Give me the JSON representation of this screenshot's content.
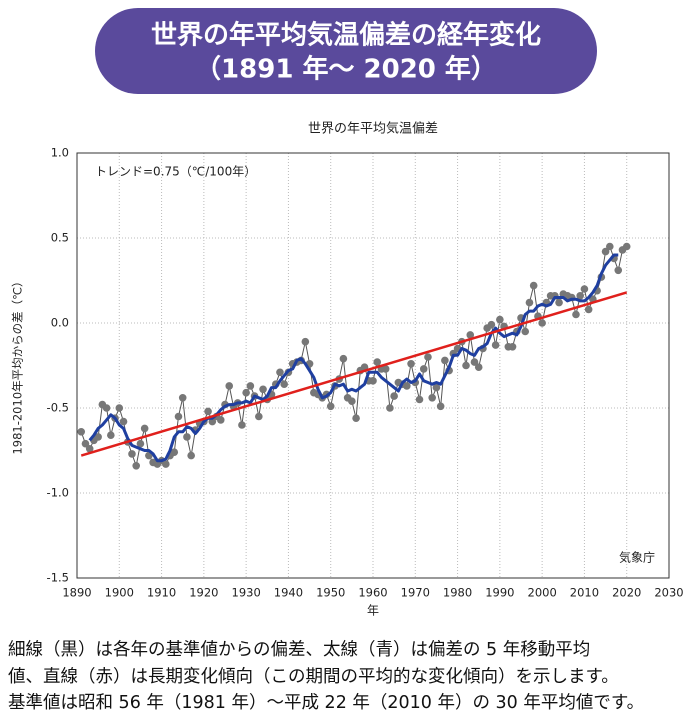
{
  "header": {
    "title_line1": "世界の年平均気温偏差の経年変化",
    "title_line2": "（1891 年～ 2020 年）"
  },
  "chart_data": {
    "type": "line",
    "title": "世界の年平均気温偏差",
    "annotation": "トレンド=0.75（℃/100年）",
    "credit": "気象庁",
    "x_label": "年",
    "y_label": "1981-2010年平均からの差（℃）",
    "x": [
      1891,
      1892,
      1893,
      1894,
      1895,
      1896,
      1897,
      1898,
      1899,
      1900,
      1901,
      1902,
      1903,
      1904,
      1905,
      1906,
      1907,
      1908,
      1909,
      1910,
      1911,
      1912,
      1913,
      1914,
      1915,
      1916,
      1917,
      1918,
      1919,
      1920,
      1921,
      1922,
      1923,
      1924,
      1925,
      1926,
      1927,
      1928,
      1929,
      1930,
      1931,
      1932,
      1933,
      1934,
      1935,
      1936,
      1937,
      1938,
      1939,
      1940,
      1941,
      1942,
      1943,
      1944,
      1945,
      1946,
      1947,
      1948,
      1949,
      1950,
      1951,
      1952,
      1953,
      1954,
      1955,
      1956,
      1957,
      1958,
      1959,
      1960,
      1961,
      1962,
      1963,
      1964,
      1965,
      1966,
      1967,
      1968,
      1969,
      1970,
      1971,
      1972,
      1973,
      1974,
      1975,
      1976,
      1977,
      1978,
      1979,
      1980,
      1981,
      1982,
      1983,
      1984,
      1985,
      1986,
      1987,
      1988,
      1989,
      1990,
      1991,
      1992,
      1993,
      1994,
      1995,
      1996,
      1997,
      1998,
      1999,
      2000,
      2001,
      2002,
      2003,
      2004,
      2005,
      2006,
      2007,
      2008,
      2009,
      2010,
      2011,
      2012,
      2013,
      2014,
      2015,
      2016,
      2017,
      2018,
      2019,
      2020
    ],
    "series": [
      {
        "color": "#555555",
        "values": [
          -0.64,
          -0.71,
          -0.74,
          -0.69,
          -0.67,
          -0.48,
          -0.5,
          -0.66,
          -0.56,
          -0.5,
          -0.58,
          -0.7,
          -0.77,
          -0.84,
          -0.71,
          -0.62,
          -0.78,
          -0.82,
          -0.83,
          -0.81,
          -0.83,
          -0.78,
          -0.76,
          -0.55,
          -0.44,
          -0.67,
          -0.78,
          -0.63,
          -0.59,
          -0.58,
          -0.52,
          -0.58,
          -0.55,
          -0.57,
          -0.48,
          -0.37,
          -0.49,
          -0.47,
          -0.6,
          -0.41,
          -0.37,
          -0.43,
          -0.55,
          -0.39,
          -0.45,
          -0.42,
          -0.36,
          -0.29,
          -0.36,
          -0.29,
          -0.24,
          -0.23,
          -0.22,
          -0.11,
          -0.24,
          -0.41,
          -0.42,
          -0.44,
          -0.42,
          -0.49,
          -0.37,
          -0.33,
          -0.21,
          -0.44,
          -0.46,
          -0.56,
          -0.28,
          -0.26,
          -0.34,
          -0.34,
          -0.23,
          -0.27,
          -0.27,
          -0.5,
          -0.43,
          -0.35,
          -0.36,
          -0.37,
          -0.24,
          -0.35,
          -0.45,
          -0.27,
          -0.2,
          -0.44,
          -0.38,
          -0.49,
          -0.22,
          -0.28,
          -0.18,
          -0.15,
          -0.11,
          -0.25,
          -0.07,
          -0.23,
          -0.26,
          -0.15,
          -0.03,
          -0.01,
          -0.13,
          0.02,
          -0.02,
          -0.14,
          -0.14,
          -0.05,
          0.03,
          -0.05,
          0.12,
          0.22,
          0.04,
          0.0,
          0.12,
          0.16,
          0.16,
          0.12,
          0.17,
          0.16,
          0.15,
          0.05,
          0.16,
          0.2,
          0.08,
          0.14,
          0.19,
          0.27,
          0.42,
          0.45,
          0.38,
          0.31,
          0.43,
          0.45
        ]
      },
      {
        "color": "#1f3fa0",
        "values": [
          null,
          null,
          -0.69,
          -0.66,
          -0.62,
          -0.6,
          -0.57,
          -0.54,
          -0.56,
          -0.6,
          -0.62,
          -0.68,
          -0.72,
          -0.73,
          -0.74,
          -0.75,
          -0.75,
          -0.77,
          -0.81,
          -0.81,
          -0.8,
          -0.75,
          -0.67,
          -0.64,
          -0.64,
          -0.61,
          -0.62,
          -0.65,
          -0.62,
          -0.58,
          -0.56,
          -0.56,
          -0.54,
          -0.51,
          -0.49,
          -0.48,
          -0.48,
          -0.47,
          -0.47,
          -0.46,
          -0.47,
          -0.43,
          -0.44,
          -0.45,
          -0.43,
          -0.38,
          -0.38,
          -0.34,
          -0.31,
          -0.28,
          -0.27,
          -0.22,
          -0.21,
          -0.24,
          -0.28,
          -0.32,
          -0.39,
          -0.44,
          -0.43,
          -0.41,
          -0.36,
          -0.37,
          -0.36,
          -0.4,
          -0.39,
          -0.4,
          -0.38,
          -0.36,
          -0.29,
          -0.29,
          -0.29,
          -0.32,
          -0.34,
          -0.36,
          -0.38,
          -0.4,
          -0.35,
          -0.33,
          -0.35,
          -0.34,
          -0.3,
          -0.34,
          -0.35,
          -0.36,
          -0.35,
          -0.36,
          -0.31,
          -0.26,
          -0.19,
          -0.19,
          -0.15,
          -0.16,
          -0.18,
          -0.19,
          -0.15,
          -0.14,
          -0.12,
          -0.06,
          -0.03,
          -0.06,
          -0.08,
          -0.07,
          -0.06,
          -0.07,
          -0.02,
          0.05,
          0.07,
          0.07,
          0.1,
          0.11,
          0.1,
          0.11,
          0.15,
          0.15,
          0.15,
          0.13,
          0.14,
          0.14,
          0.13,
          0.13,
          0.15,
          0.18,
          0.22,
          0.29,
          0.34,
          0.37,
          0.4,
          0.4,
          null,
          null
        ]
      },
      {
        "color": "#e0201c",
        "x": [
          1891,
          2020
        ],
        "values": [
          -0.78,
          0.18
        ]
      }
    ],
    "xlim": [
      1890,
      2030
    ],
    "xticks": [
      1890,
      1900,
      1910,
      1920,
      1930,
      1940,
      1950,
      1960,
      1970,
      1980,
      1990,
      2000,
      2010,
      2020,
      2030
    ],
    "ylim": [
      -1.5,
      1.0
    ],
    "yticks": [
      {
        "value": 1.0,
        "label": "1.0"
      },
      0.5,
      {
        "value": 0.0,
        "label": "0.0"
      },
      -0.5,
      {
        "value": -1.0,
        "label": "-1.0"
      },
      -1.5
    ],
    "grid": true
  },
  "caption": [
    "細線（黒）は各年の基準値からの偏差、太線（青）は偏差の 5 年移動平均",
    "値、直線（赤）は長期変化傾向（この期間の平均的な変化傾向）を示します。",
    "基準値は昭和 56 年（1981 年）～平成 22 年（2010 年）の 30 年平均値です。"
  ]
}
